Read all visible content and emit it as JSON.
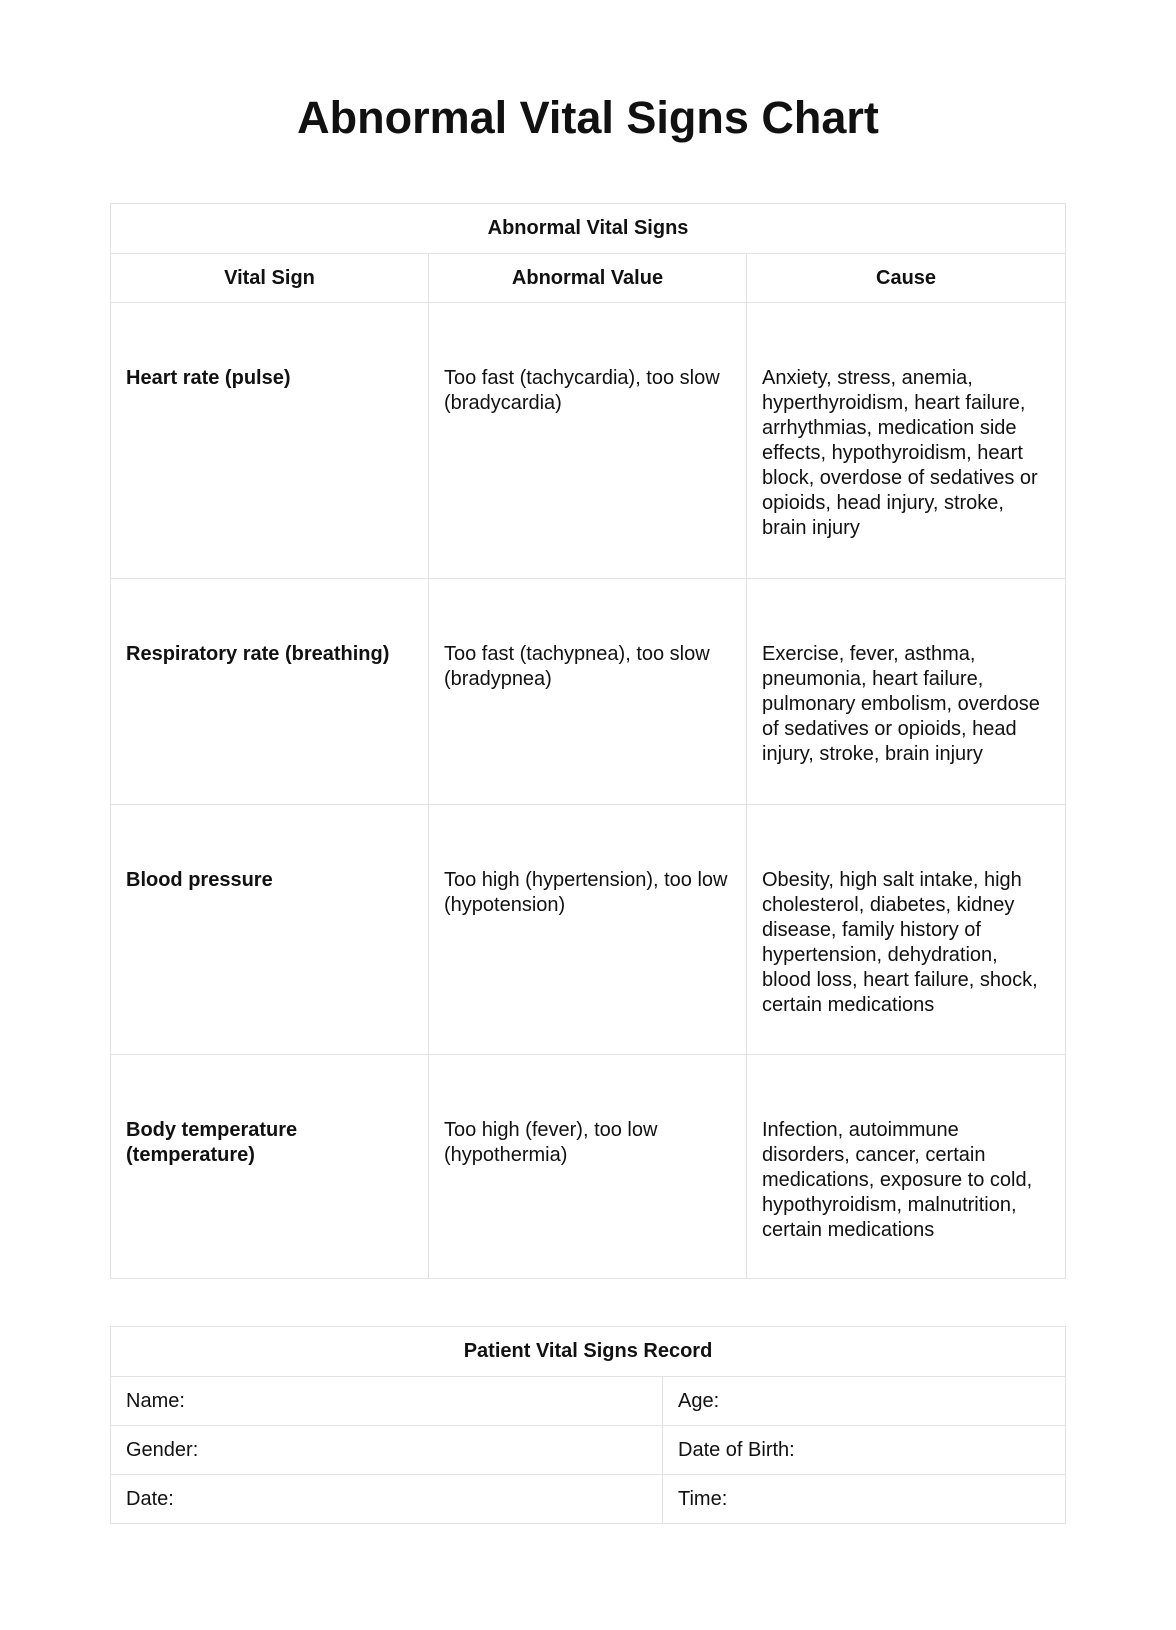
{
  "title": "Abnormal Vital Signs Chart",
  "vitals_table": {
    "caption": "Abnormal Vital Signs",
    "headers": [
      "Vital Sign",
      "Abnormal Value",
      "Cause"
    ],
    "rows": [
      {
        "sign": "Heart rate (pulse)",
        "value": "Too fast (tachycardia), too slow (bradycardia)",
        "cause": "Anxiety, stress, anemia, hyperthyroidism, heart failure, arrhythmias, medication side effects, hypothyroidism, heart block, overdose of sedatives or opioids, head injury, stroke, brain injury"
      },
      {
        "sign": "Respiratory rate (breathing)",
        "value": "Too fast (tachypnea), too slow (bradypnea)",
        "cause": "Exercise, fever, asthma, pneumonia, heart failure, pulmonary embolism, overdose of sedatives or opioids, head injury, stroke, brain injury"
      },
      {
        "sign": "Blood pressure",
        "value": "Too high (hypertension), too low (hypotension)",
        "cause": "Obesity, high salt intake, high cholesterol, diabetes, kidney disease, family history of hypertension, dehydration, blood loss, heart failure, shock, certain medications"
      },
      {
        "sign": "Body temperature (temperature)",
        "value": "Too high (fever), too low (hypothermia)",
        "cause": "Infection, autoimmune disorders, cancer, certain medications, exposure to cold, hypothyroidism, malnutrition, certain medications"
      }
    ]
  },
  "record_table": {
    "caption": "Patient Vital Signs Record",
    "fields": [
      [
        "Name:",
        "Age:"
      ],
      [
        "Gender:",
        "Date of Birth:"
      ],
      [
        "Date:",
        "Time:"
      ]
    ]
  }
}
